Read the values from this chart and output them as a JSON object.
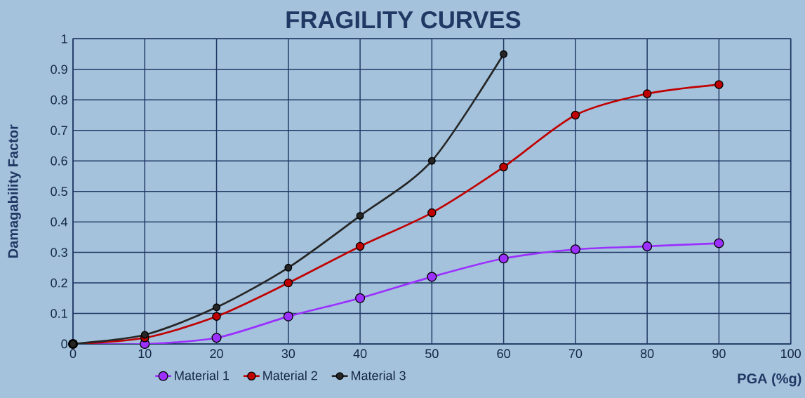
{
  "chart_data": {
    "type": "line",
    "title": "FRAGILITY CURVES",
    "xlabel": "PGA (%g)",
    "ylabel": "Damagability Factor",
    "xlim": [
      0,
      100
    ],
    "xticks": [
      0,
      10,
      20,
      30,
      40,
      50,
      60,
      70,
      80,
      90,
      100
    ],
    "ylim": [
      0,
      1
    ],
    "yticks": [
      0,
      0.1,
      0.2,
      0.3,
      0.4,
      0.5,
      0.6,
      0.7,
      0.8,
      0.9,
      1
    ],
    "grid": true,
    "legend": "bottom",
    "marker": "circle",
    "line_style": "solid",
    "series": [
      {
        "name": "Material 1",
        "color": "#9b30ff",
        "x": [
          0,
          10,
          20,
          30,
          40,
          50,
          60,
          70,
          80,
          90
        ],
        "values": [
          0,
          0,
          0.02,
          0.09,
          0.15,
          0.22,
          0.28,
          0.31,
          0.32,
          0.33
        ]
      },
      {
        "name": "Material 2",
        "color": "#c00000",
        "x": [
          0,
          10,
          20,
          30,
          40,
          50,
          60,
          70,
          80,
          90
        ],
        "values": [
          0,
          0.02,
          0.09,
          0.2,
          0.32,
          0.43,
          0.58,
          0.75,
          0.82,
          0.85
        ]
      },
      {
        "name": "Material 3",
        "color": "#262626",
        "x": [
          0,
          10,
          20,
          30,
          40,
          50,
          60
        ],
        "values": [
          0,
          0.03,
          0.12,
          0.25,
          0.42,
          0.6,
          0.95
        ]
      }
    ]
  }
}
